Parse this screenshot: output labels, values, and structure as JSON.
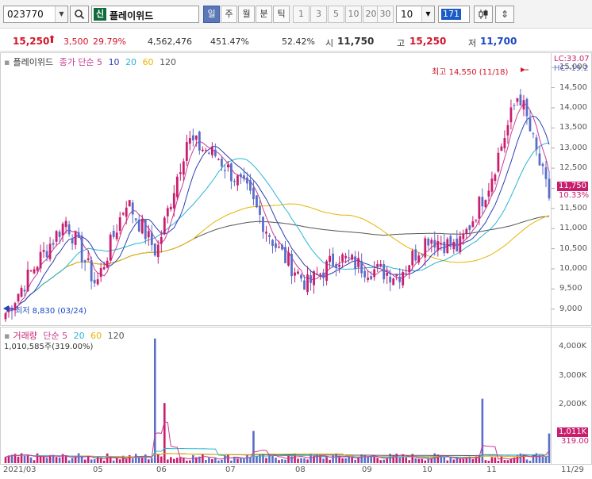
{
  "toolbar": {
    "code": "023770",
    "badge": "신",
    "name": "플레이위드",
    "periods": [
      "일",
      "주",
      "월",
      "분",
      "틱"
    ],
    "active_period": "일",
    "minute_options": [
      "1",
      "3",
      "5",
      "10",
      "20",
      "30"
    ],
    "count": "10",
    "range": "171"
  },
  "quote": {
    "price": "15,250",
    "change": "3,500",
    "change_rate": "29.79%",
    "volume": "4,562,476",
    "volume_rate": "451.47%",
    "ratio": "52.42%",
    "open_label": "시",
    "open": "11,750",
    "high_label": "고",
    "high": "15,250",
    "low_label": "저",
    "low": "11,700"
  },
  "price_panel": {
    "legend_name": "플레이위드",
    "legend_ma": "종가 단순 5",
    "ma_periods": [
      "10",
      "20",
      "60",
      "120"
    ],
    "lc": "LC:33.07",
    "hc": "HC:-19.2",
    "axis": [
      "15,000",
      "14,500",
      "14,000",
      "13,500",
      "13,000",
      "12,500",
      "12,000",
      "11,500",
      "11,000",
      "10,500",
      "10,000",
      "9,500",
      "9,000"
    ],
    "current_price_tag": "11,750",
    "current_rate_tag": "10.33%",
    "high_note": "최고 14,550 (11/18)",
    "low_note": "최저 8,830 (03/24)"
  },
  "volume_panel": {
    "legend_name": "거래량",
    "legend_ma": "단순 5",
    "ma_periods": [
      "20",
      "60",
      "120"
    ],
    "volume_text": "1,010,585주(319.00%)",
    "axis": [
      "4,000K",
      "3,000K",
      "2,000K"
    ],
    "current_volume_tag": "1,011K",
    "ratio_tag": "319.00"
  },
  "dates": [
    "2021/03",
    "05",
    "06",
    "07",
    "08",
    "09",
    "10",
    "11",
    "11/29"
  ],
  "colors": {
    "up": "#c81e6e",
    "down": "#5a6ec8",
    "ma5": "#c83c96",
    "ma10": "#2c3fb6",
    "ma20": "#28b4d2",
    "ma60": "#e6b400",
    "ma120": "#555555"
  },
  "chart_data": {
    "type": "candlestick",
    "x": [
      "2021/03",
      "05",
      "06",
      "07",
      "08",
      "09",
      "10",
      "11",
      "11/29"
    ],
    "price_close_anchors": [
      8900,
      10100,
      11200,
      9600,
      11700,
      10400,
      13200,
      12800,
      11900,
      10500,
      9600,
      10300,
      10000,
      9850,
      10800,
      10500,
      12100,
      14400,
      11750
    ],
    "ylim_price": [
      8700,
      15200
    ],
    "ylim_volume": [
      0,
      4300
    ],
    "volume_unit": "K",
    "volume_spikes_k": [
      {
        "near": "06",
        "value": 4250
      },
      {
        "near": "06",
        "value": 2050
      },
      {
        "near": "07",
        "value": 1100
      },
      {
        "near": "11",
        "value": 2200
      },
      {
        "near": "11/29",
        "value": 1011
      }
    ]
  }
}
